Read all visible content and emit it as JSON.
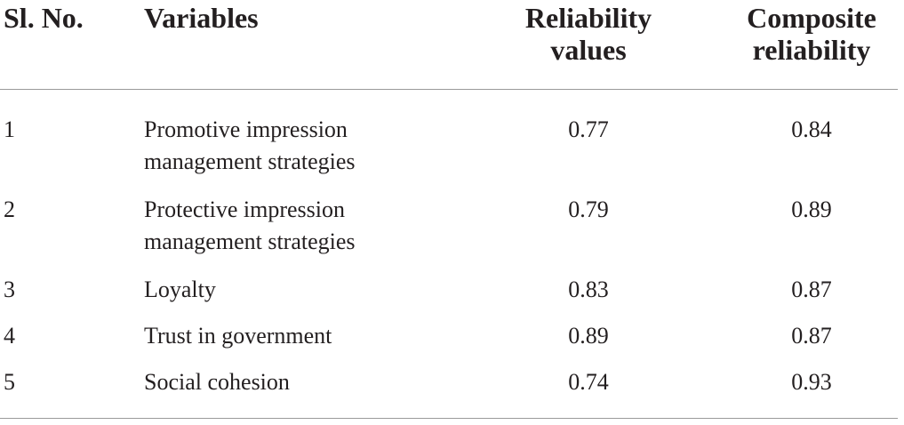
{
  "table": {
    "headers": {
      "sl_no": "Sl. No.",
      "variables": "Variables",
      "reliability_line1": "Reliability",
      "reliability_line2": "values",
      "composite_line1": "Composite",
      "composite_line2": "reliability"
    },
    "rows": [
      {
        "sl": "1",
        "variable_line1": "Promotive impression",
        "variable_line2": "management strategies",
        "reliability": "0.77",
        "composite": "0.84"
      },
      {
        "sl": "2",
        "variable_line1": "Protective impression",
        "variable_line2": "management strategies",
        "reliability": "0.79",
        "composite": "0.89"
      },
      {
        "sl": "3",
        "variable_line1": "Loyalty",
        "variable_line2": "",
        "reliability": "0.83",
        "composite": "0.87"
      },
      {
        "sl": "4",
        "variable_line1": "Trust in government",
        "variable_line2": "",
        "reliability": "0.89",
        "composite": "0.87"
      },
      {
        "sl": "5",
        "variable_line1": "Social cohesion",
        "variable_line2": "",
        "reliability": "0.74",
        "composite": "0.93"
      }
    ]
  }
}
